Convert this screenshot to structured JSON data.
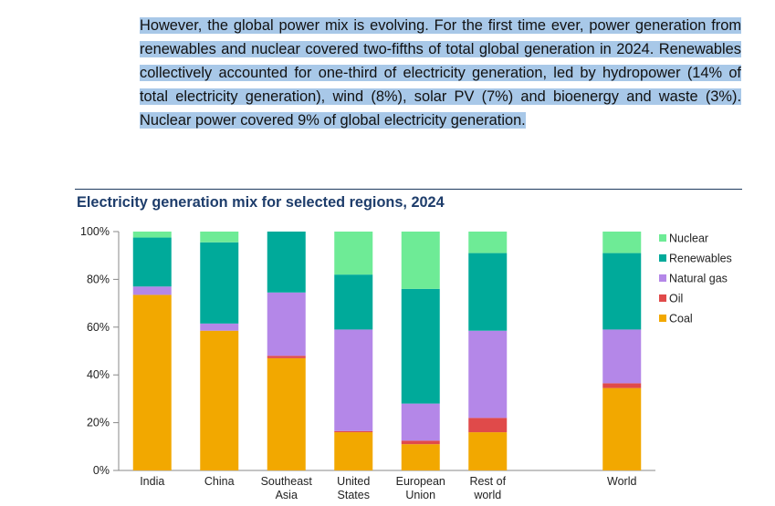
{
  "text": {
    "paragraph": "However, the global power mix is evolving. For the first time ever, power generation from renewables and nuclear covered two-fifths of total global generation in 2024. Renewables collectively accounted for one-third of electricity generation, led by hydropower (14% of total electricity generation), wind (8%), solar PV (7%) and bioenergy and waste (3%). Nuclear power covered 9% of global electricity generation."
  },
  "chart_data": {
    "type": "bar",
    "stacked": true,
    "title": "Electricity generation mix for selected regions, 2024",
    "categories": [
      [
        "India"
      ],
      [
        "China"
      ],
      [
        "Southeast",
        "Asia"
      ],
      [
        "United",
        "States"
      ],
      [
        "European",
        "Union"
      ],
      [
        "Rest of",
        "world"
      ],
      [
        "World"
      ]
    ],
    "category_gap_before_last": true,
    "ylim": [
      0,
      100
    ],
    "yticks": [
      "0%",
      "20%",
      "40%",
      "60%",
      "80%",
      "100%"
    ],
    "grid": false,
    "legend_position": "right",
    "series": [
      {
        "name": "Coal",
        "color": "#f2a800",
        "values": [
          73.5,
          58.5,
          47,
          16,
          11,
          16,
          34.5
        ]
      },
      {
        "name": "Oil",
        "color": "#e04a4a",
        "values": [
          0,
          0,
          1,
          0.5,
          1.5,
          6,
          2
        ]
      },
      {
        "name": "Natural gas",
        "color": "#b487e8",
        "values": [
          3.5,
          3,
          26.5,
          42.5,
          15.5,
          36.5,
          22.5
        ]
      },
      {
        "name": "Renewables",
        "color": "#00aa9a",
        "values": [
          20.5,
          34,
          25.5,
          23,
          48,
          32.5,
          32
        ]
      },
      {
        "name": "Nuclear",
        "color": "#6eeb96",
        "values": [
          2.5,
          4.5,
          0,
          18,
          24,
          9,
          9
        ]
      }
    ],
    "legend_order": [
      "Nuclear",
      "Renewables",
      "Natural gas",
      "Oil",
      "Coal"
    ]
  }
}
